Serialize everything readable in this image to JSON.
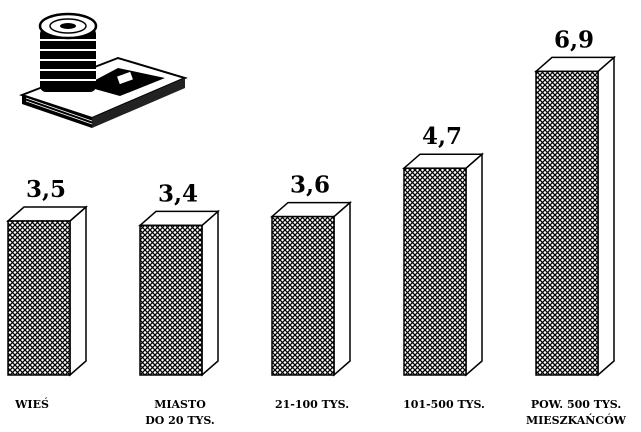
{
  "chart_data": {
    "type": "bar",
    "style": "3d-column",
    "categories": [
      [
        "WIEŚ"
      ],
      [
        "MIASTO",
        "DO 20 TYS."
      ],
      [
        "21-100 TYS."
      ],
      [
        "101-500 TYS."
      ],
      [
        "POW. 500 TYS.",
        "MIESZKAŃCÓW"
      ]
    ],
    "values": [
      3.5,
      3.4,
      3.6,
      4.7,
      6.9
    ],
    "value_labels": [
      "3,5",
      "3,4",
      "3,6",
      "4,7",
      "6,9"
    ],
    "title": "",
    "xlabel": "",
    "ylabel": "",
    "ylim": [
      0,
      7.5
    ],
    "grid": false,
    "legend": "none",
    "colors": {
      "bar_front_hatch": "#000000",
      "bar_side": "#ffffff",
      "outline": "#000000"
    },
    "decoration": "money-icon"
  }
}
